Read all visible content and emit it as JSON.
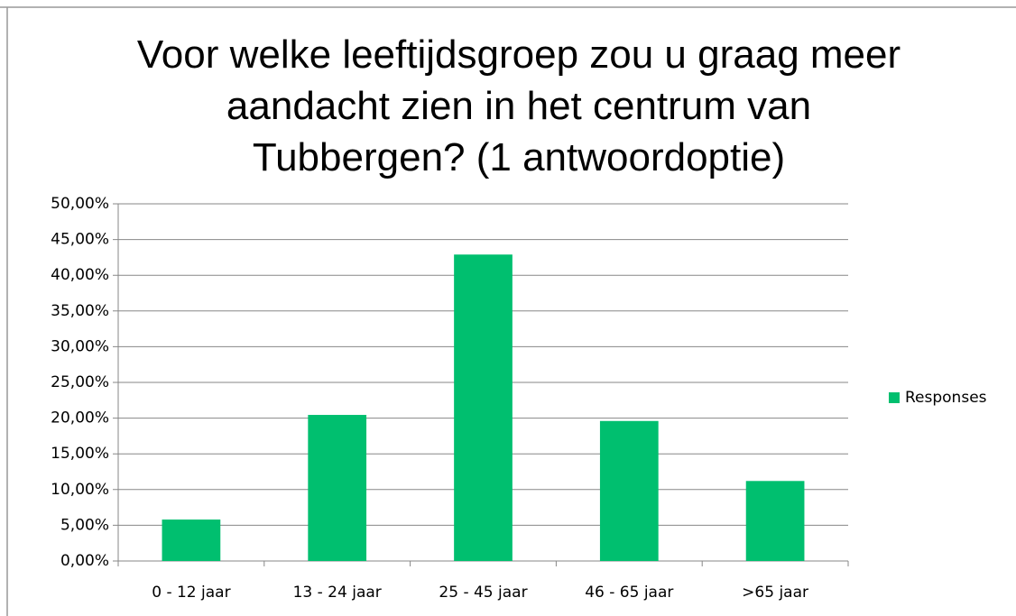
{
  "chart_data": {
    "type": "bar",
    "title": "Voor welke leeftijdsgroep zou u graag meer aandacht zien in het centrum van Tubbergen? (1 antwoordoptie)",
    "categories": [
      "0 - 12 jaar",
      "13 - 24 jaar",
      "25 - 45 jaar",
      "46 - 65 jaar",
      ">65 jaar"
    ],
    "series": [
      {
        "name": "Responses",
        "color": "#00bf6f",
        "values": [
          5.8,
          20.45,
          42.9,
          19.6,
          11.2
        ]
      }
    ],
    "ylim": [
      0,
      50
    ],
    "yticks": [
      {
        "value": 0,
        "label": "0,00%"
      },
      {
        "value": 5,
        "label": "5,00%"
      },
      {
        "value": 10,
        "label": "10,00%"
      },
      {
        "value": 15,
        "label": "15,00%"
      },
      {
        "value": 20,
        "label": "20,00%"
      },
      {
        "value": 25,
        "label": "25,00%"
      },
      {
        "value": 30,
        "label": "30,00%"
      },
      {
        "value": 35,
        "label": "35,00%"
      },
      {
        "value": 40,
        "label": "40,00%"
      },
      {
        "value": 45,
        "label": "45,00%"
      },
      {
        "value": 50,
        "label": "50,00%"
      }
    ],
    "grid": true,
    "legend": "right"
  }
}
